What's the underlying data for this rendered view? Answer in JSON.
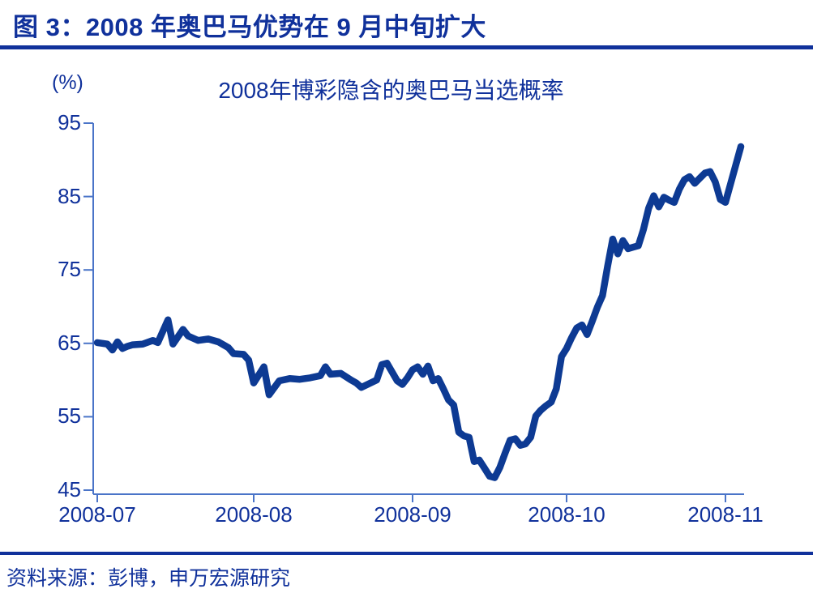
{
  "header": {
    "title": "图 3：2008 年奥巴马优势在 9 月中旬扩大"
  },
  "footer": {
    "source": "资料来源：彭博，申万宏源研究"
  },
  "colors": {
    "navy_text": "#10319B",
    "line": "#0D3A93",
    "axis": "#4A74C8"
  },
  "chart_data": {
    "type": "line",
    "title": "2008年博彩隐含的奥巴马当选概率",
    "unit_label": "(%)",
    "xlabel": "",
    "ylabel": "(%)",
    "ylim": [
      45,
      95
    ],
    "y_ticks": [
      95,
      85,
      75,
      65,
      55,
      45
    ],
    "x_tick_labels": [
      "2008-07",
      "2008-08",
      "2008-09",
      "2008-10",
      "2008-11"
    ],
    "grid": false,
    "legend_position": "none",
    "series": [
      {
        "name": "2008年博彩隐含的奥巴马当选概率",
        "points": [
          [
            "2008-07-01",
            65.1
          ],
          [
            "2008-07-02",
            65.0
          ],
          [
            "2008-07-03",
            64.9
          ],
          [
            "2008-07-04",
            64.1
          ],
          [
            "2008-07-05",
            65.2
          ],
          [
            "2008-07-06",
            64.3
          ],
          [
            "2008-07-07",
            64.6
          ],
          [
            "2008-07-08",
            64.8
          ],
          [
            "2008-07-10",
            64.9
          ],
          [
            "2008-07-12",
            65.4
          ],
          [
            "2008-07-13",
            65.1
          ],
          [
            "2008-07-15",
            68.2
          ],
          [
            "2008-07-16",
            64.9
          ],
          [
            "2008-07-18",
            66.9
          ],
          [
            "2008-07-19",
            66.0
          ],
          [
            "2008-07-21",
            65.4
          ],
          [
            "2008-07-23",
            65.6
          ],
          [
            "2008-07-25",
            65.2
          ],
          [
            "2008-07-26",
            64.8
          ],
          [
            "2008-07-27",
            64.4
          ],
          [
            "2008-07-28",
            63.6
          ],
          [
            "2008-07-30",
            63.5
          ],
          [
            "2008-07-31",
            62.7
          ],
          [
            "2008-08-01",
            59.6
          ],
          [
            "2008-08-03",
            61.8
          ],
          [
            "2008-08-04",
            58.0
          ],
          [
            "2008-08-06",
            59.9
          ],
          [
            "2008-08-08",
            60.2
          ],
          [
            "2008-08-10",
            60.1
          ],
          [
            "2008-08-12",
            60.3
          ],
          [
            "2008-08-14",
            60.6
          ],
          [
            "2008-08-15",
            61.8
          ],
          [
            "2008-08-16",
            60.8
          ],
          [
            "2008-08-18",
            60.9
          ],
          [
            "2008-08-20",
            60.0
          ],
          [
            "2008-08-21",
            59.6
          ],
          [
            "2008-08-22",
            59.0
          ],
          [
            "2008-08-25",
            60.0
          ],
          [
            "2008-08-26",
            62.1
          ],
          [
            "2008-08-27",
            62.3
          ],
          [
            "2008-08-29",
            59.9
          ],
          [
            "2008-08-30",
            59.4
          ],
          [
            "2008-08-31",
            60.3
          ],
          [
            "2008-09-01",
            61.4
          ],
          [
            "2008-09-02",
            61.8
          ],
          [
            "2008-09-03",
            60.8
          ],
          [
            "2008-09-04",
            61.9
          ],
          [
            "2008-09-05",
            59.9
          ],
          [
            "2008-09-06",
            60.2
          ],
          [
            "2008-09-07",
            58.8
          ],
          [
            "2008-09-08",
            57.3
          ],
          [
            "2008-09-09",
            56.6
          ],
          [
            "2008-09-10",
            52.9
          ],
          [
            "2008-09-11",
            52.4
          ],
          [
            "2008-09-12",
            52.2
          ],
          [
            "2008-09-13",
            48.9
          ],
          [
            "2008-09-14",
            49.1
          ],
          [
            "2008-09-15",
            48.0
          ],
          [
            "2008-09-16",
            46.9
          ],
          [
            "2008-09-17",
            46.7
          ],
          [
            "2008-09-18",
            48.1
          ],
          [
            "2008-09-19",
            50.0
          ],
          [
            "2008-09-20",
            51.8
          ],
          [
            "2008-09-21",
            52.0
          ],
          [
            "2008-09-22",
            51.1
          ],
          [
            "2008-09-23",
            51.3
          ],
          [
            "2008-09-24",
            52.2
          ],
          [
            "2008-09-25",
            55.1
          ],
          [
            "2008-09-26",
            55.9
          ],
          [
            "2008-09-27",
            56.5
          ],
          [
            "2008-09-28",
            57.0
          ],
          [
            "2008-09-29",
            58.8
          ],
          [
            "2008-09-30",
            63.2
          ],
          [
            "2008-10-01",
            64.3
          ],
          [
            "2008-10-02",
            65.8
          ],
          [
            "2008-10-03",
            67.1
          ],
          [
            "2008-10-04",
            67.5
          ],
          [
            "2008-10-05",
            66.2
          ],
          [
            "2008-10-06",
            68.0
          ],
          [
            "2008-10-07",
            69.9
          ],
          [
            "2008-10-08",
            71.5
          ],
          [
            "2008-10-09",
            75.5
          ],
          [
            "2008-10-10",
            79.2
          ],
          [
            "2008-10-11",
            77.2
          ],
          [
            "2008-10-12",
            79.0
          ],
          [
            "2008-10-13",
            77.9
          ],
          [
            "2008-10-14",
            78.1
          ],
          [
            "2008-10-15",
            78.3
          ],
          [
            "2008-10-16",
            80.5
          ],
          [
            "2008-10-17",
            83.4
          ],
          [
            "2008-10-18",
            85.1
          ],
          [
            "2008-10-19",
            83.6
          ],
          [
            "2008-10-20",
            84.9
          ],
          [
            "2008-10-21",
            84.5
          ],
          [
            "2008-10-22",
            84.2
          ],
          [
            "2008-10-23",
            86.0
          ],
          [
            "2008-10-24",
            87.3
          ],
          [
            "2008-10-25",
            87.7
          ],
          [
            "2008-10-26",
            86.8
          ],
          [
            "2008-10-27",
            87.5
          ],
          [
            "2008-10-28",
            88.2
          ],
          [
            "2008-10-29",
            88.4
          ],
          [
            "2008-10-30",
            87.0
          ],
          [
            "2008-10-31",
            84.6
          ],
          [
            "2008-11-01",
            84.2
          ],
          [
            "2008-11-04",
            91.8
          ]
        ]
      }
    ]
  }
}
